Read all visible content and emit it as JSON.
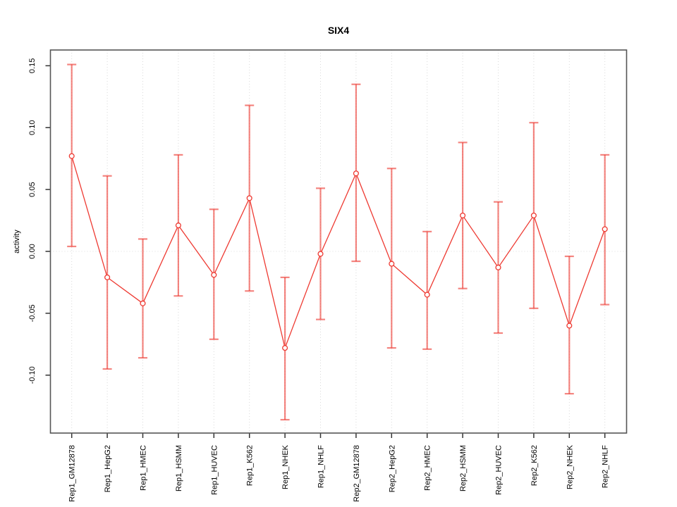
{
  "chart_data": {
    "type": "line",
    "title": "SIX4",
    "xlabel": "",
    "ylabel": "activity",
    "legend": "none",
    "grid": {
      "vertical": "dotted light-gray at every category",
      "horizontal": "dotted light-gray at y=0"
    },
    "categories": [
      "Rep1_GM12878",
      "Rep1_HepG2",
      "Rep1_HMEC",
      "Rep1_HSMM",
      "Rep1_HUVEC",
      "Rep1_K562",
      "Rep1_NHEK",
      "Rep1_NHLF",
      "Rep2_GM12878",
      "Rep2_HepG2",
      "Rep2_HMEC",
      "Rep2_HSMM",
      "Rep2_HUVEC",
      "Rep2_K562",
      "Rep2_NHEK",
      "Rep2_NHLF"
    ],
    "series": [
      {
        "name": "activity",
        "marker": "open-circle",
        "values": [
          0.077,
          -0.021,
          -0.042,
          0.021,
          -0.019,
          0.043,
          -0.078,
          -0.002,
          0.063,
          -0.01,
          -0.035,
          0.029,
          -0.013,
          0.029,
          -0.06,
          0.018
        ],
        "ci_high": [
          0.151,
          0.061,
          0.01,
          0.078,
          0.034,
          0.118,
          -0.021,
          0.051,
          0.135,
          0.067,
          0.016,
          0.088,
          0.04,
          0.104,
          -0.004,
          0.078
        ],
        "ci_low": [
          0.004,
          -0.095,
          -0.086,
          -0.036,
          -0.071,
          -0.032,
          -0.136,
          -0.055,
          -0.008,
          -0.078,
          -0.079,
          -0.03,
          -0.066,
          -0.046,
          -0.115,
          -0.043
        ]
      }
    ],
    "ytick_labels": [
      "0.15",
      "0.10",
      "0.05",
      "0.00",
      "-0.05",
      "-0.10"
    ],
    "ytick_values": [
      0.15,
      0.1,
      0.05,
      0.0,
      -0.05,
      -0.1
    ],
    "ylim": [
      -0.147,
      0.163
    ],
    "colors": {
      "series": "#ee3a32",
      "error_bar": "rgba(238,58,50,0.62)",
      "grid": "#d9d9d9",
      "frame": "#555555",
      "tick": "#333333",
      "text": "#000000",
      "background": "#ffffff"
    }
  }
}
